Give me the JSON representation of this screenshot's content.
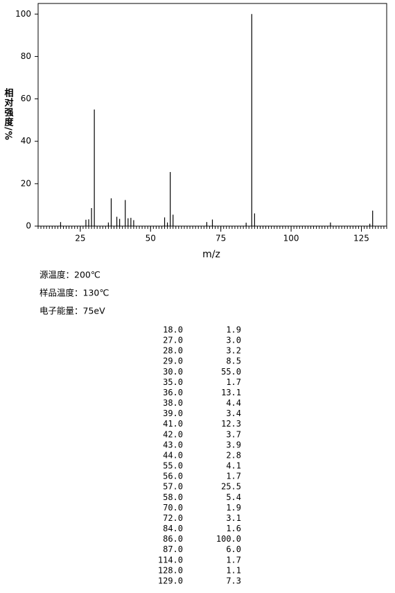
{
  "chart_data": {
    "type": "bar",
    "y_label": "相对强度/%",
    "x_label": "m/z",
    "x": [
      18,
      27,
      28,
      29,
      30,
      35,
      36,
      38,
      39,
      41,
      42,
      43,
      44,
      55,
      56,
      57,
      58,
      70,
      72,
      84,
      86,
      87,
      114,
      128,
      129
    ],
    "values": [
      1.9,
      3.0,
      3.2,
      8.5,
      55.0,
      1.7,
      13.1,
      4.4,
      3.4,
      12.3,
      3.7,
      3.9,
      2.8,
      4.1,
      1.7,
      25.5,
      5.4,
      1.9,
      3.1,
      1.6,
      100.0,
      6.0,
      1.7,
      1.1,
      7.3
    ],
    "color": "#000000",
    "xlim": [
      10,
      134
    ],
    "xticks": [
      25,
      50,
      75,
      100,
      125
    ],
    "ylim": [
      0,
      105
    ],
    "yticks": [
      0,
      20,
      40,
      60,
      80,
      100
    ]
  },
  "conditions": [
    "源温度：200℃",
    "样品温度：130℃",
    "电子能量：75eV"
  ],
  "table": {
    "rows": [
      [
        "18.0",
        "1.9"
      ],
      [
        "27.0",
        "3.0"
      ],
      [
        "28.0",
        "3.2"
      ],
      [
        "29.0",
        "8.5"
      ],
      [
        "30.0",
        "55.0"
      ],
      [
        "35.0",
        "1.7"
      ],
      [
        "36.0",
        "13.1"
      ],
      [
        "38.0",
        "4.4"
      ],
      [
        "39.0",
        "3.4"
      ],
      [
        "41.0",
        "12.3"
      ],
      [
        "42.0",
        "3.7"
      ],
      [
        "43.0",
        "3.9"
      ],
      [
        "44.0",
        "2.8"
      ],
      [
        "55.0",
        "4.1"
      ],
      [
        "56.0",
        "1.7"
      ],
      [
        "57.0",
        "25.5"
      ],
      [
        "58.0",
        "5.4"
      ],
      [
        "70.0",
        "1.9"
      ],
      [
        "72.0",
        "3.1"
      ],
      [
        "84.0",
        "1.6"
      ],
      [
        "86.0",
        "100.0"
      ],
      [
        "87.0",
        "6.0"
      ],
      [
        "114.0",
        "1.7"
      ],
      [
        "128.0",
        "1.1"
      ],
      [
        "129.0",
        "7.3"
      ]
    ]
  }
}
